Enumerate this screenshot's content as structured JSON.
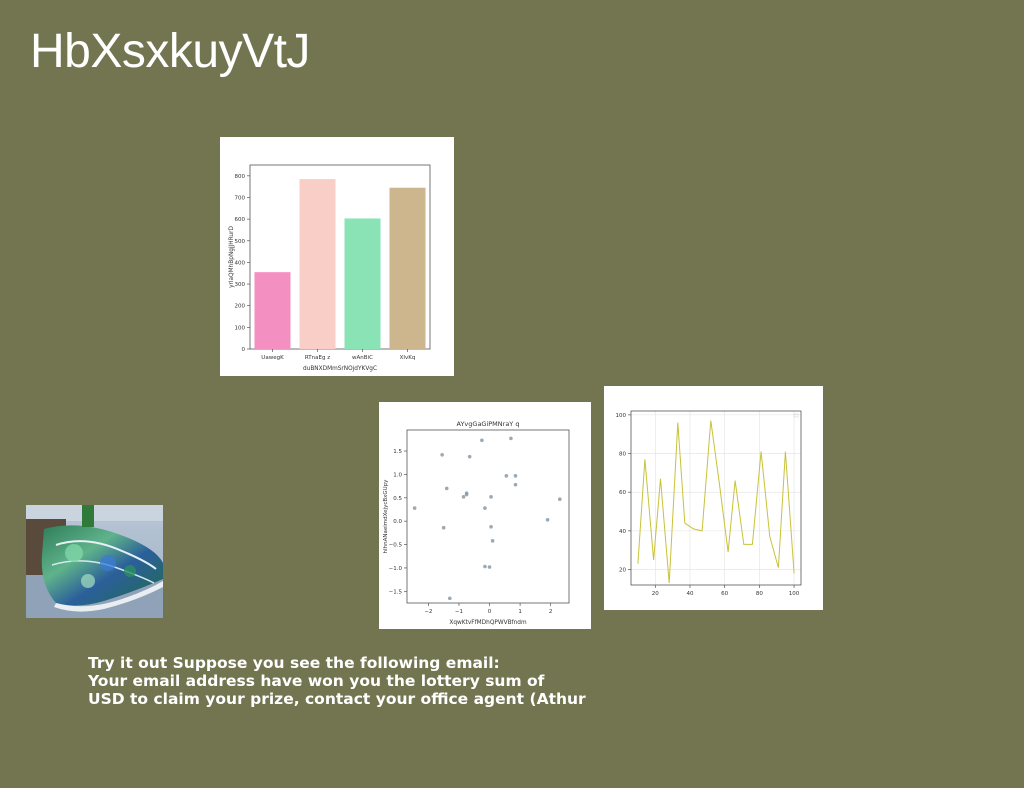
{
  "page": {
    "title": "HbXsxkuyVtJ",
    "caption_lines": [
      "Try it out Suppose you see the following email:",
      "Your email address have won you the lottery sum of",
      "USD to claim your prize, contact your office agent (Athur"
    ]
  },
  "chart_data": [
    {
      "type": "bar",
      "title": "",
      "xlabel": "duBNXDMmSrNOjdYKVgC",
      "ylabel": "yrlaQMhBpNgjJHRurD",
      "categories": [
        "UawegK",
        "RTnaEg z",
        "wAnBiC",
        "XIvKq"
      ],
      "values": [
        355,
        785,
        603,
        745
      ],
      "colors": [
        "#f48fc1",
        "#f8cec7",
        "#8ae3b5",
        "#cdb58e"
      ],
      "ylim": [
        0,
        850
      ],
      "yticks": [
        0,
        100,
        200,
        300,
        400,
        500,
        600,
        700,
        800
      ]
    },
    {
      "type": "scatter",
      "title": "AYvgGaGiPMNraY q",
      "xlabel": "XqwKtvFfMDhQPWVBfndm",
      "ylabel": "hIhnANaeimdXejycBxGUpy",
      "xlim": [
        -2.7,
        2.6
      ],
      "ylim": [
        -1.75,
        1.95
      ],
      "xticks": [
        -2,
        -1,
        0,
        1,
        2
      ],
      "yticks": [
        -1.5,
        -1.0,
        -0.5,
        0.0,
        0.5,
        1.0,
        1.5
      ],
      "color": "#8a9aa8",
      "points": [
        [
          -2.45,
          0.28
        ],
        [
          -1.55,
          1.42
        ],
        [
          -1.5,
          -0.14
        ],
        [
          -1.4,
          0.7
        ],
        [
          -1.3,
          -1.65
        ],
        [
          -0.85,
          0.52
        ],
        [
          -0.75,
          0.6
        ],
        [
          -0.75,
          0.57
        ],
        [
          -0.65,
          1.38
        ],
        [
          -0.25,
          1.73
        ],
        [
          -0.15,
          0.28
        ],
        [
          -0.15,
          -0.97
        ],
        [
          0.0,
          -0.98
        ],
        [
          0.05,
          -0.12
        ],
        [
          0.05,
          0.52
        ],
        [
          0.1,
          -0.42
        ],
        [
          0.55,
          0.97
        ],
        [
          0.7,
          1.77
        ],
        [
          0.85,
          0.97
        ],
        [
          0.85,
          0.78
        ],
        [
          1.9,
          0.03
        ],
        [
          2.3,
          0.47
        ]
      ]
    },
    {
      "type": "line",
      "title": "",
      "xlabel": "",
      "ylabel": "",
      "xlim": [
        6,
        104
      ],
      "ylim": [
        12,
        102
      ],
      "xticks": [
        20,
        40,
        60,
        80,
        100
      ],
      "yticks": [
        20,
        40,
        60,
        80,
        100
      ],
      "grid": true,
      "color": "#c8c23a",
      "x": [
        10,
        14,
        19,
        23,
        28,
        33,
        37,
        42,
        47,
        52,
        57,
        62,
        66,
        71,
        76,
        81,
        86,
        91,
        95,
        100
      ],
      "y": [
        23,
        77,
        25,
        67,
        13,
        96,
        44,
        41,
        40,
        97,
        64,
        29,
        66,
        33,
        33,
        81,
        37,
        21,
        81,
        18
      ]
    }
  ]
}
